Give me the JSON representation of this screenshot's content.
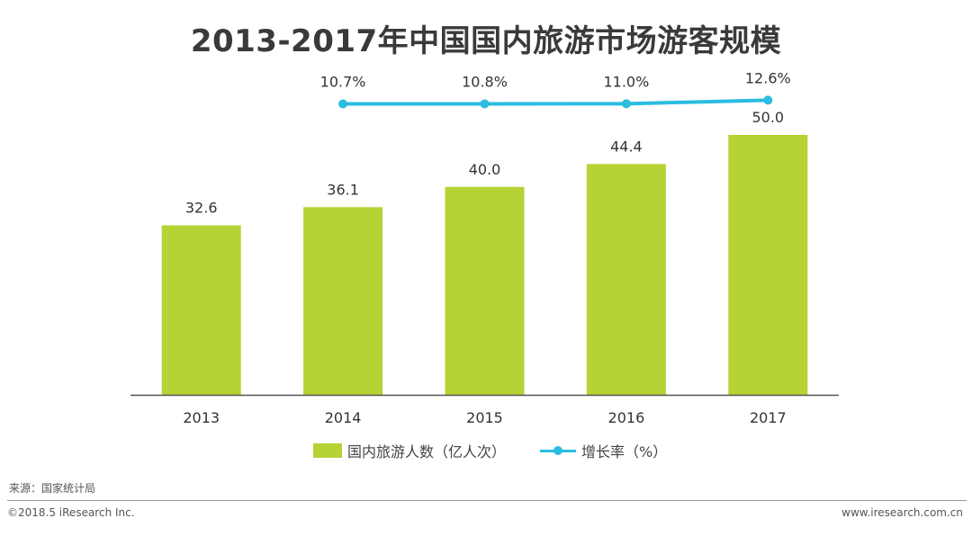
{
  "title": "2013-2017年中国国内旅游市场游客规模",
  "chart_data": {
    "type": "bar",
    "categories": [
      "2013",
      "2014",
      "2015",
      "2016",
      "2017"
    ],
    "series": [
      {
        "name": "国内旅游人数（亿人次）",
        "type": "bar",
        "values": [
          32.6,
          36.1,
          40.0,
          44.4,
          50.0
        ],
        "labels": [
          "32.6",
          "36.1",
          "40.0",
          "44.4",
          "50.0"
        ],
        "color": "#b5d334"
      },
      {
        "name": "增长率（%）",
        "type": "line",
        "x": [
          "2014",
          "2015",
          "2016",
          "2017"
        ],
        "values": [
          10.7,
          10.8,
          11.0,
          12.6
        ],
        "labels": [
          "10.7%",
          "10.8%",
          "11.0%",
          "12.6%"
        ],
        "color": "#2bbde0"
      }
    ],
    "ylim": [
      0,
      55
    ],
    "grid": false,
    "legend_position": "bottom"
  },
  "legend": {
    "bar_label": "国内旅游人数（亿人次）",
    "line_label": "增长率（%）"
  },
  "source": "来源：国家统计局",
  "footer": {
    "left": "©2018.5 iResearch Inc.",
    "right": "www.iresearch.com.cn"
  }
}
